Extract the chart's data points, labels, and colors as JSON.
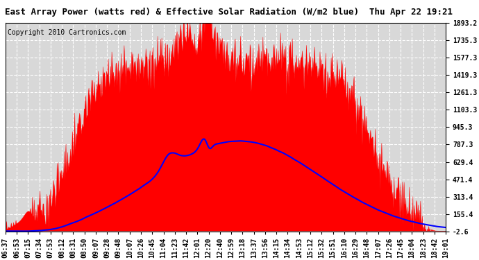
{
  "title": "East Array Power (watts red) & Effective Solar Radiation (W/m2 blue)  Thu Apr 22 19:21",
  "copyright": "Copyright 2010 Cartronics.com",
  "background_color": "#ffffff",
  "plot_bg_color": "#d8d8d8",
  "grid_color": "#ffffff",
  "y_ticks": [
    -2.6,
    155.4,
    313.4,
    471.4,
    629.4,
    787.3,
    945.3,
    1103.3,
    1261.3,
    1419.3,
    1577.3,
    1735.3,
    1893.2
  ],
  "y_tick_labels": [
    "-2.6",
    "155.4",
    "313.4",
    "471.4",
    "629.4",
    "787.3",
    "945.3",
    "1103.3",
    "1261.3",
    "1419.3",
    "1577.3",
    "1735.3",
    "1893.2"
  ],
  "x_tick_labels": [
    "06:37",
    "06:53",
    "07:15",
    "07:34",
    "07:53",
    "08:12",
    "08:31",
    "08:50",
    "09:07",
    "09:28",
    "09:48",
    "10:07",
    "10:26",
    "10:45",
    "11:04",
    "11:23",
    "11:42",
    "12:01",
    "12:20",
    "12:40",
    "12:59",
    "13:18",
    "13:37",
    "13:56",
    "14:15",
    "14:34",
    "14:53",
    "15:12",
    "15:32",
    "15:51",
    "16:10",
    "16:29",
    "16:48",
    "17:07",
    "17:26",
    "17:45",
    "18:04",
    "18:23",
    "18:42",
    "19:01"
  ],
  "ylim_min": -2.6,
  "ylim_max": 1893.2,
  "red_color": "#ff0000",
  "blue_color": "#0000ff",
  "title_fontsize": 9,
  "copyright_fontsize": 7,
  "tick_fontsize": 7,
  "title_font": "monospace"
}
